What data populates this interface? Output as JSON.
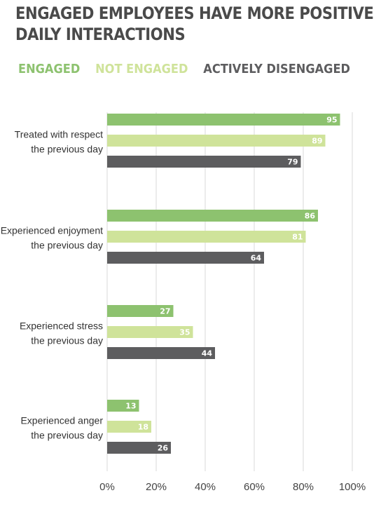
{
  "chart_data": {
    "type": "bar",
    "orientation": "horizontal",
    "title": "ENGAGED EMPLOYEES HAVE MORE POSITIVE DAILY INTERACTIONS",
    "title_lines": [
      "ENGAGED EMPLOYEES HAVE MORE POSITIVE",
      "DAILY INTERACTIONS"
    ],
    "categories": [
      [
        "Treated with respect",
        "the previous day"
      ],
      [
        "Experienced enjoyment",
        "the previous day"
      ],
      [
        "Experienced stress",
        "the previous day"
      ],
      [
        "Experienced anger",
        "the previous day"
      ]
    ],
    "series": [
      {
        "name": "ENGAGED",
        "color": "#8dc26f",
        "values": [
          95,
          86,
          27,
          13
        ]
      },
      {
        "name": "NOT ENGAGED",
        "color": "#cfe39a",
        "values": [
          89,
          81,
          35,
          18
        ]
      },
      {
        "name": "ACTIVELY DISENGAGED",
        "color": "#5d5d5f",
        "values": [
          79,
          64,
          44,
          26
        ]
      }
    ],
    "xlim": [
      0,
      100
    ],
    "xticks": [
      "0%",
      "20%",
      "40%",
      "60%",
      "80%",
      "100%"
    ],
    "xtick_values": [
      0,
      20,
      40,
      60,
      80,
      100
    ],
    "grid": "vertical",
    "legend": "top",
    "data_labels": true
  }
}
